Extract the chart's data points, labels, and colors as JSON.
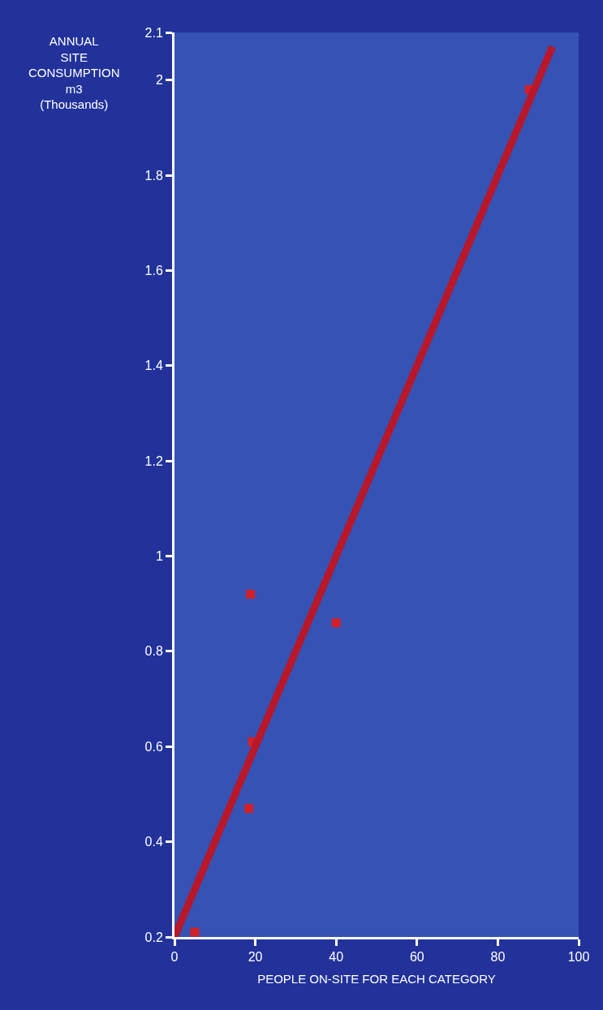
{
  "chart_data": {
    "type": "scatter",
    "xlabel": "PEOPLE ON-SITE FOR EACH CATEGORY",
    "ylabel": "ANNUAL\nSITE\nCONSUMPTION\nm3\n(Thousands)",
    "series": [
      {
        "color": "#d0202a",
        "marker": "square",
        "x": [
          5,
          18.4,
          19.3,
          18.8,
          40,
          87.8
        ],
        "values": [
          0.21,
          0.47,
          0.61,
          0.92,
          0.86,
          1.98
        ]
      },
      {
        "type": "line",
        "color": "#b8182a",
        "marker": "none",
        "x": [
          0,
          93.5
        ],
        "values": [
          0.2,
          2.07
        ]
      }
    ],
    "xlim": [
      0,
      100
    ],
    "xticks": [
      0,
      20,
      40,
      60,
      80,
      100
    ],
    "ylim": [
      0.2,
      2.1
    ],
    "yticks": [
      0.2,
      0.4,
      0.6,
      0.8,
      1,
      1.2,
      1.4,
      1.6,
      1.8,
      2,
      2.1
    ],
    "grid": false
  }
}
